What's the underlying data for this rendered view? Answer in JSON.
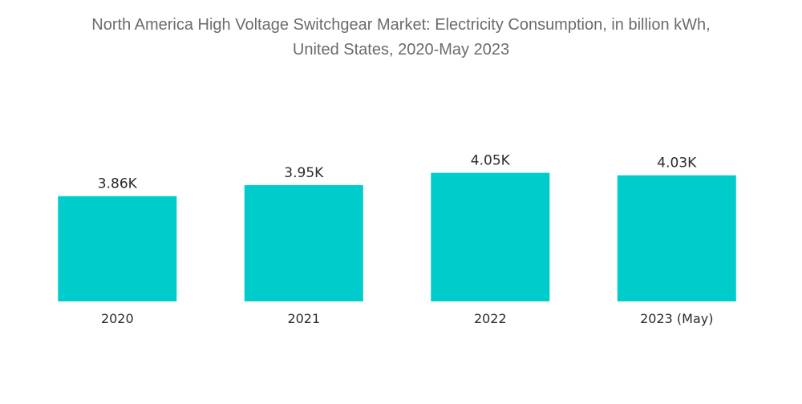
{
  "title": {
    "line1": "North America High Voltage Switchgear Market: Electricity Consumption, in billion kWh,",
    "line2": "United States, 2020-May 2023"
  },
  "colors": {
    "bar": "#00cccc",
    "title": "#6b6b6b",
    "text": "#2b2b2b"
  },
  "chart_data": {
    "type": "bar",
    "title": "North America High Voltage Switchgear Market: Electricity Consumption, in billion kWh, United States, 2020-May 2023",
    "categories": [
      "2020",
      "2021",
      "2022",
      "2023 (May)"
    ],
    "values": [
      3860,
      3950,
      4050,
      4030
    ],
    "data_labels": [
      "3.86K",
      "3.95K",
      "4.05K",
      "4.03K"
    ],
    "xlabel": "",
    "ylabel": "",
    "ylim": [
      0,
      4300
    ],
    "grid": false,
    "legend": "none"
  }
}
